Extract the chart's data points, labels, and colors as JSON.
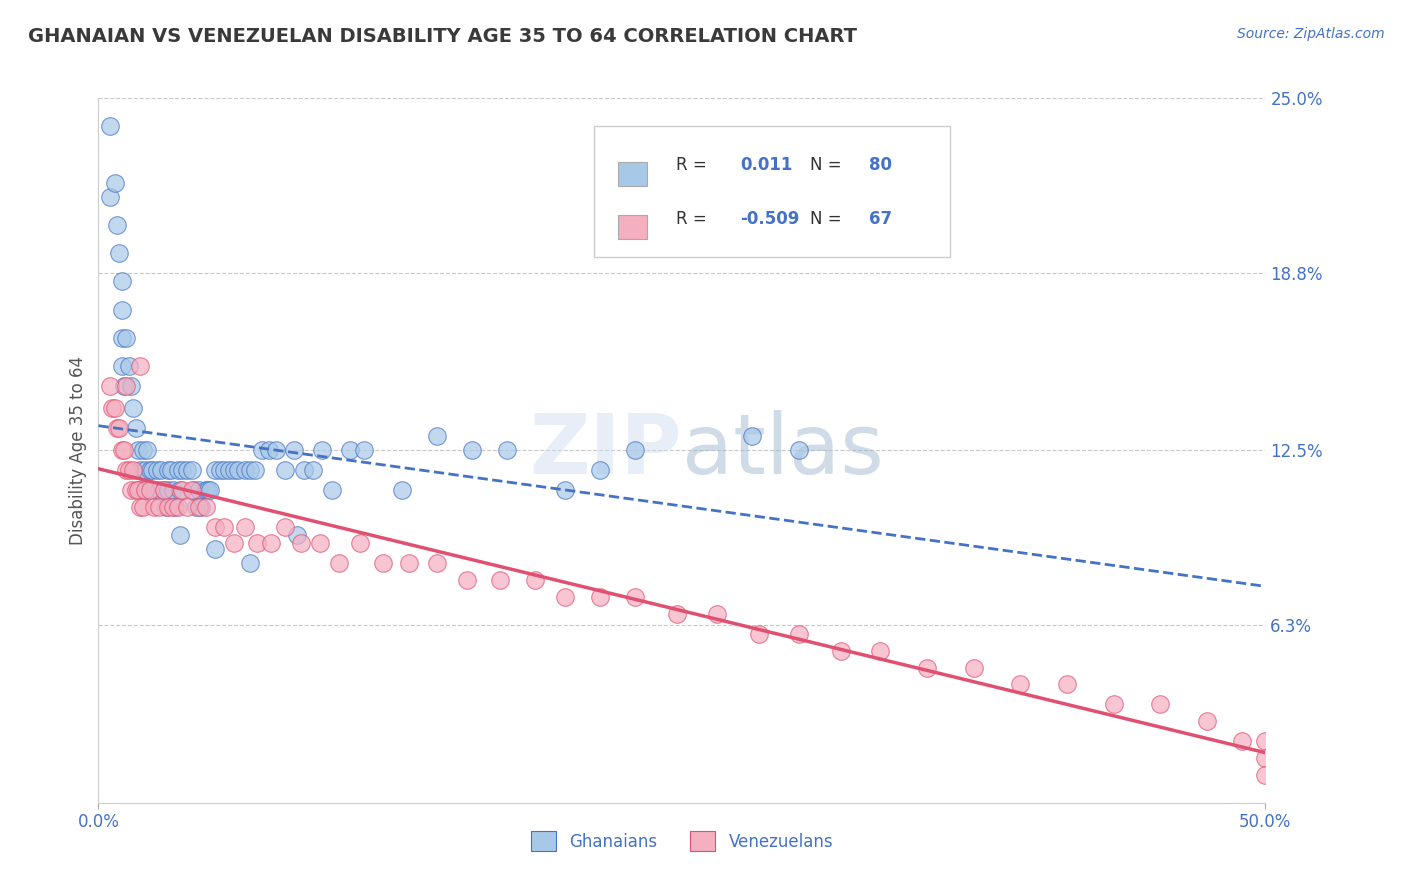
{
  "title": "GHANAIAN VS VENEZUELAN DISABILITY AGE 35 TO 64 CORRELATION CHART",
  "source": "Source: ZipAtlas.com",
  "ylabel": "Disability Age 35 to 64",
  "xlim": [
    0.0,
    0.5
  ],
  "ylim": [
    0.0,
    0.25
  ],
  "ytick_labels": [
    "25.0%",
    "18.8%",
    "12.5%",
    "6.3%"
  ],
  "ytick_positions": [
    0.25,
    0.188,
    0.125,
    0.063
  ],
  "watermark": "ZIPatlas",
  "legend_r1": "R =    0.011",
  "legend_n1": "N = 80",
  "legend_r2": "R = -0.509",
  "legend_n2": "N = 67",
  "ghanaian_color": "#a8c8e8",
  "venezuelan_color": "#f4afc0",
  "ghanaian_line_color": "#4472c4",
  "venezuelan_line_color": "#e05070",
  "title_color": "#3a3a3a",
  "source_color": "#4472c4",
  "axis_label_color": "#555555",
  "tick_label_color": "#4472c4",
  "grid_color": "#c8c8c8",
  "background_color": "#ffffff",
  "ghanaian_x": [
    0.005,
    0.005,
    0.007,
    0.008,
    0.009,
    0.01,
    0.01,
    0.01,
    0.01,
    0.011,
    0.012,
    0.013,
    0.014,
    0.015,
    0.016,
    0.017,
    0.018,
    0.018,
    0.019,
    0.02,
    0.02,
    0.021,
    0.022,
    0.023,
    0.024,
    0.025,
    0.026,
    0.027,
    0.028,
    0.029,
    0.03,
    0.03,
    0.031,
    0.032,
    0.033,
    0.034,
    0.035,
    0.036,
    0.038,
    0.04,
    0.041,
    0.042,
    0.043,
    0.044,
    0.046,
    0.047,
    0.048,
    0.05,
    0.052,
    0.054,
    0.056,
    0.058,
    0.06,
    0.063,
    0.065,
    0.067,
    0.07,
    0.073,
    0.076,
    0.08,
    0.084,
    0.088,
    0.092,
    0.096,
    0.1,
    0.108,
    0.114,
    0.13,
    0.145,
    0.16,
    0.175,
    0.2,
    0.215,
    0.23,
    0.28,
    0.3,
    0.035,
    0.05,
    0.065,
    0.085
  ],
  "ghanaian_y": [
    0.24,
    0.215,
    0.22,
    0.205,
    0.195,
    0.185,
    0.175,
    0.165,
    0.155,
    0.148,
    0.165,
    0.155,
    0.148,
    0.14,
    0.133,
    0.125,
    0.118,
    0.111,
    0.125,
    0.118,
    0.111,
    0.125,
    0.118,
    0.118,
    0.111,
    0.118,
    0.111,
    0.118,
    0.111,
    0.105,
    0.118,
    0.111,
    0.118,
    0.111,
    0.105,
    0.118,
    0.111,
    0.118,
    0.118,
    0.118,
    0.111,
    0.105,
    0.111,
    0.105,
    0.111,
    0.111,
    0.111,
    0.118,
    0.118,
    0.118,
    0.118,
    0.118,
    0.118,
    0.118,
    0.118,
    0.118,
    0.125,
    0.125,
    0.125,
    0.118,
    0.125,
    0.118,
    0.118,
    0.125,
    0.111,
    0.125,
    0.125,
    0.111,
    0.13,
    0.125,
    0.125,
    0.111,
    0.118,
    0.125,
    0.13,
    0.125,
    0.095,
    0.09,
    0.085,
    0.095
  ],
  "venezuelan_x": [
    0.005,
    0.006,
    0.007,
    0.008,
    0.009,
    0.01,
    0.011,
    0.012,
    0.013,
    0.014,
    0.015,
    0.016,
    0.017,
    0.018,
    0.019,
    0.02,
    0.022,
    0.024,
    0.026,
    0.028,
    0.03,
    0.032,
    0.034,
    0.036,
    0.038,
    0.04,
    0.043,
    0.046,
    0.05,
    0.054,
    0.058,
    0.063,
    0.068,
    0.074,
    0.08,
    0.087,
    0.095,
    0.103,
    0.112,
    0.122,
    0.133,
    0.145,
    0.158,
    0.172,
    0.187,
    0.2,
    0.215,
    0.23,
    0.248,
    0.265,
    0.283,
    0.3,
    0.318,
    0.335,
    0.355,
    0.375,
    0.395,
    0.415,
    0.435,
    0.455,
    0.475,
    0.49,
    0.5,
    0.5,
    0.5,
    0.012,
    0.018
  ],
  "venezuelan_y": [
    0.148,
    0.14,
    0.14,
    0.133,
    0.133,
    0.125,
    0.125,
    0.118,
    0.118,
    0.111,
    0.118,
    0.111,
    0.111,
    0.105,
    0.105,
    0.111,
    0.111,
    0.105,
    0.105,
    0.111,
    0.105,
    0.105,
    0.105,
    0.111,
    0.105,
    0.111,
    0.105,
    0.105,
    0.098,
    0.098,
    0.092,
    0.098,
    0.092,
    0.092,
    0.098,
    0.092,
    0.092,
    0.085,
    0.092,
    0.085,
    0.085,
    0.085,
    0.079,
    0.079,
    0.079,
    0.073,
    0.073,
    0.073,
    0.067,
    0.067,
    0.06,
    0.06,
    0.054,
    0.054,
    0.048,
    0.048,
    0.042,
    0.042,
    0.035,
    0.035,
    0.029,
    0.022,
    0.022,
    0.016,
    0.01,
    0.148,
    0.155
  ]
}
